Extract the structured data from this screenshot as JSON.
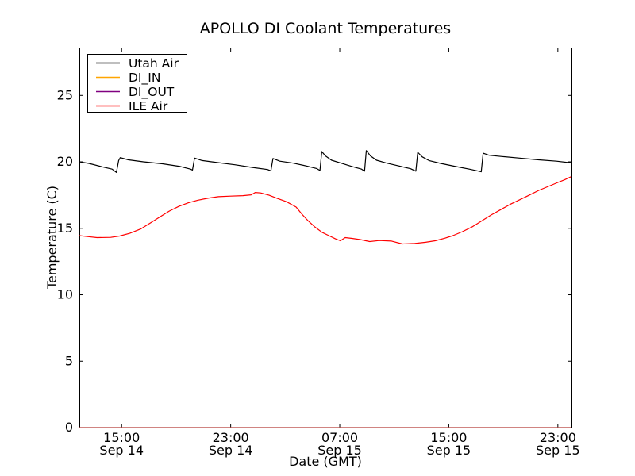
{
  "chart_data": {
    "type": "line",
    "title": "APOLLO DI Coolant Temperatures",
    "xlabel": "Date (GMT)",
    "ylabel": "Temperature (C)",
    "grid": false,
    "x_axis": {
      "unit": "hours since Sep 14 00:00 GMT",
      "range": [
        11.9,
        48.0
      ],
      "ticks": [
        {
          "hour": 15,
          "time": "15:00",
          "date": "Sep 14"
        },
        {
          "hour": 23,
          "time": "23:00",
          "date": "Sep 14"
        },
        {
          "hour": 31,
          "time": "07:00",
          "date": "Sep 15"
        },
        {
          "hour": 39,
          "time": "15:00",
          "date": "Sep 15"
        },
        {
          "hour": 47,
          "time": "23:00",
          "date": "Sep 15"
        }
      ]
    },
    "y_axis": {
      "range": [
        0,
        28.6
      ],
      "ticks": [
        0,
        5,
        10,
        15,
        20,
        25
      ]
    },
    "legend": {
      "position": "upper-left",
      "entries": [
        "Utah Air",
        "DI_IN",
        "DI_OUT",
        "ILE Air"
      ]
    },
    "series": [
      {
        "name": "Utah Air",
        "color": "#000000",
        "points": [
          [
            11.9,
            20.0
          ],
          [
            12.6,
            19.88
          ],
          [
            13.6,
            19.62
          ],
          [
            14.3,
            19.45
          ],
          [
            14.62,
            19.2
          ],
          [
            14.78,
            20.1
          ],
          [
            14.9,
            20.32
          ],
          [
            15.5,
            20.15
          ],
          [
            16.6,
            20.0
          ],
          [
            18.0,
            19.85
          ],
          [
            19.3,
            19.65
          ],
          [
            20.05,
            19.45
          ],
          [
            20.2,
            19.38
          ],
          [
            20.35,
            20.28
          ],
          [
            20.9,
            20.1
          ],
          [
            22.0,
            19.95
          ],
          [
            23.3,
            19.78
          ],
          [
            24.6,
            19.58
          ],
          [
            25.7,
            19.42
          ],
          [
            25.95,
            19.32
          ],
          [
            26.1,
            20.25
          ],
          [
            26.6,
            20.05
          ],
          [
            27.6,
            19.9
          ],
          [
            28.6,
            19.68
          ],
          [
            29.3,
            19.5
          ],
          [
            29.55,
            19.35
          ],
          [
            29.68,
            20.78
          ],
          [
            29.95,
            20.45
          ],
          [
            30.4,
            20.12
          ],
          [
            31.1,
            19.9
          ],
          [
            31.9,
            19.65
          ],
          [
            32.6,
            19.45
          ],
          [
            32.82,
            19.3
          ],
          [
            32.95,
            20.85
          ],
          [
            33.25,
            20.45
          ],
          [
            33.7,
            20.12
          ],
          [
            34.4,
            19.92
          ],
          [
            35.3,
            19.7
          ],
          [
            36.2,
            19.48
          ],
          [
            36.58,
            19.3
          ],
          [
            36.72,
            20.72
          ],
          [
            37.05,
            20.38
          ],
          [
            37.55,
            20.1
          ],
          [
            38.4,
            19.88
          ],
          [
            39.5,
            19.65
          ],
          [
            40.5,
            19.45
          ],
          [
            41.2,
            19.3
          ],
          [
            41.38,
            19.25
          ],
          [
            41.52,
            20.65
          ],
          [
            41.95,
            20.5
          ],
          [
            42.9,
            20.4
          ],
          [
            44.2,
            20.28
          ],
          [
            45.6,
            20.15
          ],
          [
            46.9,
            20.05
          ],
          [
            48.0,
            19.92
          ]
        ]
      },
      {
        "name": "DI_IN",
        "color": "#ffa500",
        "points": [
          [
            11.9,
            0
          ],
          [
            48.0,
            0
          ]
        ]
      },
      {
        "name": "DI_OUT",
        "color": "#800080",
        "points": [
          [
            11.9,
            0
          ],
          [
            48.0,
            0
          ]
        ]
      },
      {
        "name": "ILE Air",
        "color": "#ff0000",
        "points": [
          [
            11.9,
            14.45
          ],
          [
            12.5,
            14.38
          ],
          [
            13.2,
            14.3
          ],
          [
            14.2,
            14.32
          ],
          [
            14.85,
            14.42
          ],
          [
            15.6,
            14.62
          ],
          [
            16.4,
            14.95
          ],
          [
            17.1,
            15.4
          ],
          [
            17.8,
            15.85
          ],
          [
            18.5,
            16.3
          ],
          [
            19.2,
            16.65
          ],
          [
            19.9,
            16.92
          ],
          [
            20.6,
            17.12
          ],
          [
            21.4,
            17.28
          ],
          [
            22.1,
            17.38
          ],
          [
            23.0,
            17.42
          ],
          [
            23.9,
            17.46
          ],
          [
            24.5,
            17.52
          ],
          [
            24.8,
            17.7
          ],
          [
            25.2,
            17.66
          ],
          [
            25.8,
            17.5
          ],
          [
            26.4,
            17.26
          ],
          [
            27.1,
            17.0
          ],
          [
            27.8,
            16.6
          ],
          [
            28.2,
            16.1
          ],
          [
            28.7,
            15.55
          ],
          [
            29.2,
            15.08
          ],
          [
            29.7,
            14.7
          ],
          [
            30.2,
            14.45
          ],
          [
            30.7,
            14.2
          ],
          [
            31.05,
            14.06
          ],
          [
            31.4,
            14.3
          ],
          [
            31.9,
            14.24
          ],
          [
            32.5,
            14.15
          ],
          [
            33.2,
            14.0
          ],
          [
            33.9,
            14.08
          ],
          [
            34.8,
            14.04
          ],
          [
            35.6,
            13.82
          ],
          [
            36.5,
            13.86
          ],
          [
            37.3,
            13.95
          ],
          [
            38.0,
            14.06
          ],
          [
            38.7,
            14.25
          ],
          [
            39.3,
            14.45
          ],
          [
            40.0,
            14.75
          ],
          [
            40.7,
            15.1
          ],
          [
            41.4,
            15.55
          ],
          [
            42.1,
            16.0
          ],
          [
            42.8,
            16.4
          ],
          [
            43.5,
            16.8
          ],
          [
            44.2,
            17.15
          ],
          [
            44.9,
            17.5
          ],
          [
            45.6,
            17.85
          ],
          [
            46.3,
            18.15
          ],
          [
            47.0,
            18.45
          ],
          [
            47.5,
            18.65
          ],
          [
            48.0,
            18.9
          ]
        ]
      }
    ]
  }
}
